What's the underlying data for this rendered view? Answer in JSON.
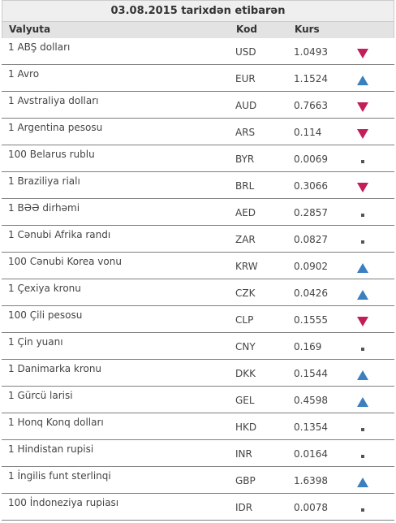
{
  "table": {
    "title": "03.08.2015 tarixdən etibarən",
    "headers": {
      "currency": "Valyuta",
      "code": "Kod",
      "rate": "Kurs"
    },
    "rows": [
      {
        "name": "1 ABŞ dolları",
        "code": "USD",
        "rate": "1.0493",
        "trend": "down"
      },
      {
        "name": "1 Avro",
        "code": "EUR",
        "rate": "1.1524",
        "trend": "up"
      },
      {
        "name": "1 Avstraliya dolları",
        "code": "AUD",
        "rate": "0.7663",
        "trend": "down"
      },
      {
        "name": "1 Argentina pesosu",
        "code": "ARS",
        "rate": "0.114",
        "trend": "down"
      },
      {
        "name": "100 Belarus rublu",
        "code": "BYR",
        "rate": "0.0069",
        "trend": "same"
      },
      {
        "name": "1 Braziliya rialı",
        "code": "BRL",
        "rate": "0.3066",
        "trend": "down"
      },
      {
        "name": "1 BƏƏ dirhəmi",
        "code": "AED",
        "rate": "0.2857",
        "trend": "same"
      },
      {
        "name": "1 Cənubi Afrika randı",
        "code": "ZAR",
        "rate": "0.0827",
        "trend": "same"
      },
      {
        "name": "100 Cənubi Korea vonu",
        "code": "KRW",
        "rate": "0.0902",
        "trend": "up"
      },
      {
        "name": "1 Çexiya kronu",
        "code": "CZK",
        "rate": "0.0426",
        "trend": "up"
      },
      {
        "name": "100 Çili pesosu",
        "code": "CLP",
        "rate": "0.1555",
        "trend": "down"
      },
      {
        "name": "1 Çin yuanı",
        "code": "CNY",
        "rate": "0.169",
        "trend": "same"
      },
      {
        "name": "1 Danimarka kronu",
        "code": "DKK",
        "rate": "0.1544",
        "trend": "up"
      },
      {
        "name": "1 Gürcü larisi",
        "code": "GEL",
        "rate": "0.4598",
        "trend": "up"
      },
      {
        "name": "1 Honq Konq dolları",
        "code": "HKD",
        "rate": "0.1354",
        "trend": "same"
      },
      {
        "name": "1 Hindistan rupisi",
        "code": "INR",
        "rate": "0.0164",
        "trend": "same"
      },
      {
        "name": "1 İngilis funt sterlinqi",
        "code": "GBP",
        "rate": "1.6398",
        "trend": "up"
      },
      {
        "name": "100 İndoneziya rupiası",
        "code": "IDR",
        "rate": "0.0078",
        "trend": "same"
      }
    ]
  },
  "icons": {
    "up": "triangle-up-icon",
    "down": "triangle-down-icon",
    "same": "square-dot-icon"
  },
  "colors": {
    "up": "#3a7fc0",
    "down": "#c21e5a",
    "same": "#555555",
    "row_border": "#7f7f7f",
    "header_bg": "#e3e3e3"
  }
}
